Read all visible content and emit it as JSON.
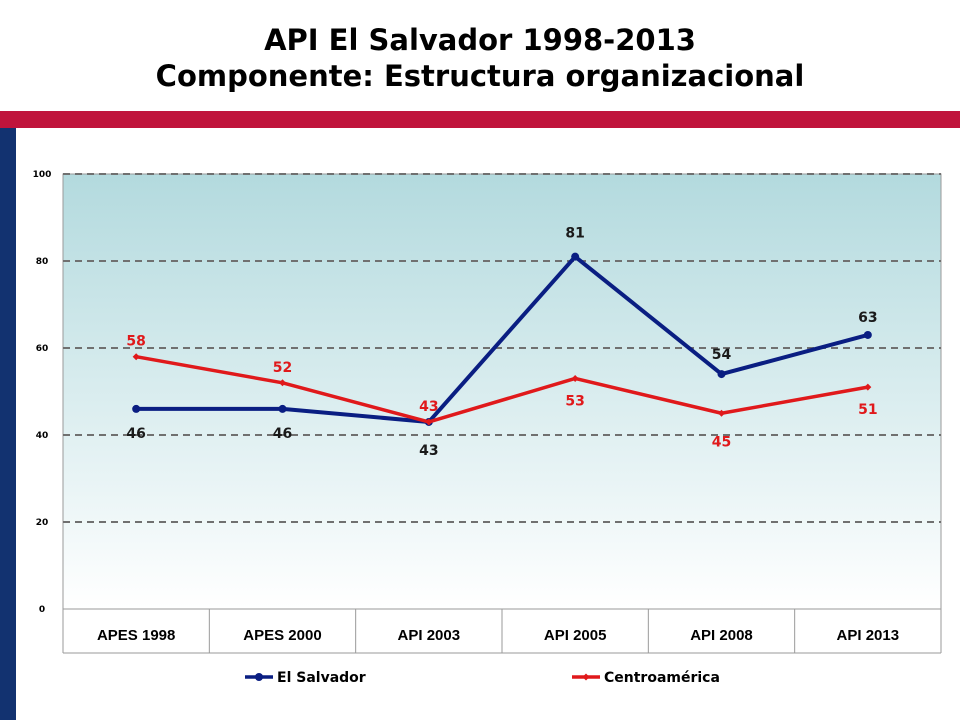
{
  "slide": {
    "title_line1": "API El Salvador 1998-2013",
    "title_line2": "Componente: Estructura organizacional",
    "colors": {
      "accent_bar": "#c0143c",
      "side_bar": "#123270"
    }
  },
  "chart_data": {
    "type": "line",
    "title": "",
    "xlabel": "",
    "ylabel": "",
    "categories": [
      "APES 1998",
      "APES 2000",
      "API 2003",
      "API 2005",
      "API 2008",
      "API 2013"
    ],
    "ylim": [
      0,
      100
    ],
    "yticks": [
      0,
      20,
      40,
      60,
      80,
      100
    ],
    "grid": true,
    "legend_position": "bottom",
    "series": [
      {
        "name": "El Salvador",
        "values": [
          46,
          46,
          43,
          81,
          54,
          63
        ],
        "color": "#0a1e82",
        "marker": "circle",
        "labels": [
          "46",
          "46",
          "43",
          "81",
          "54",
          "63"
        ]
      },
      {
        "name": "Centroamérica",
        "values": [
          58,
          52,
          43,
          53,
          45,
          51
        ],
        "color": "#e0191b",
        "marker": "diamond",
        "labels": [
          "58",
          "52",
          "43",
          "53",
          "45",
          "51"
        ]
      }
    ]
  }
}
